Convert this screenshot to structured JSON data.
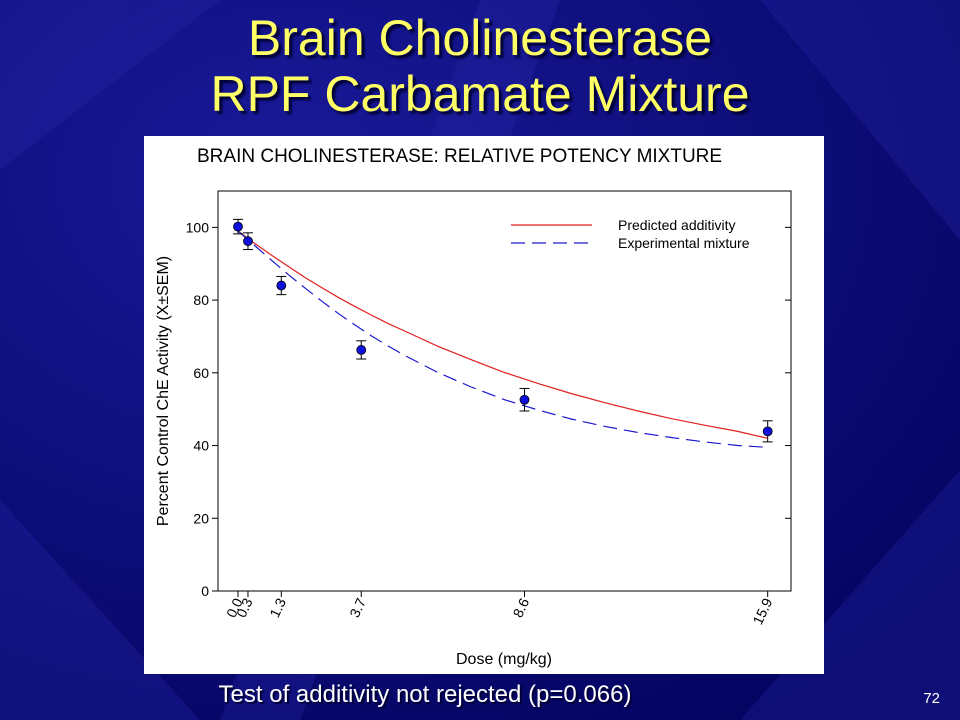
{
  "slide": {
    "title_line1": "Brain Cholinesterase",
    "title_line2": "RPF Carbamate Mixture",
    "footnote": "Test of additivity not rejected (p=0.066)",
    "slide_number": "72"
  },
  "colors": {
    "background": "#06067a",
    "title": "#ffff66",
    "predicted_line": "#e02020",
    "experimental_line": "#1a1acc",
    "marker": "#1010dd"
  },
  "chart_data": {
    "type": "line",
    "title": "BRAIN CHOLINESTERASE: RELATIVE POTENCY MIXTURE",
    "xlabel": "Dose (mg/kg)",
    "ylabel": "Percent Control ChE Activity (X±SEM)",
    "xlim": [
      -0.6,
      16.6
    ],
    "ylim": [
      0,
      110
    ],
    "x_ticks": [
      "0.0",
      "0.3",
      "1.3",
      "3.7",
      "8.6",
      "15.9"
    ],
    "x_tick_values": [
      0.0,
      0.3,
      1.3,
      3.7,
      8.6,
      15.9
    ],
    "y_ticks": [
      0,
      20,
      40,
      60,
      80,
      100
    ],
    "legend_position": "top-right",
    "series": [
      {
        "name": "Predicted additivity",
        "style": "solid",
        "x": [
          0,
          0.5,
          1,
          1.5,
          2,
          2.5,
          3,
          3.5,
          4,
          4.5,
          5,
          6,
          7,
          8,
          9,
          10,
          11,
          12,
          13,
          14,
          15,
          15.9
        ],
        "y": [
          99,
          95.6,
          92.4,
          89.3,
          86.3,
          83.5,
          80.8,
          78.3,
          75.9,
          73.6,
          71.5,
          67.3,
          63.6,
          60.1,
          57.1,
          54.3,
          51.8,
          49.5,
          47.4,
          45.6,
          43.9,
          42
        ]
      },
      {
        "name": "Experimental mixture",
        "style": "dashed",
        "x": [
          0,
          0.5,
          1,
          1.5,
          2,
          2.5,
          3,
          3.5,
          4,
          4.5,
          5,
          6,
          7,
          8,
          9,
          10,
          11,
          12,
          13,
          14,
          15,
          15.9
        ],
        "y": [
          99,
          95,
          91,
          87.1,
          83.4,
          79.8,
          76.4,
          73.2,
          70.2,
          67.4,
          64.8,
          60.1,
          56.1,
          52.6,
          49.8,
          47.3,
          45.3,
          43.6,
          42.2,
          41.0,
          40.0,
          39.5
        ]
      }
    ],
    "observed": {
      "x": [
        0.0,
        0.3,
        1.3,
        3.7,
        8.6,
        15.9
      ],
      "y": [
        100.2,
        96.2,
        84.0,
        66.3,
        52.6,
        43.9
      ],
      "sem": [
        2.0,
        2.3,
        2.5,
        2.5,
        3.1,
        2.9
      ]
    }
  }
}
